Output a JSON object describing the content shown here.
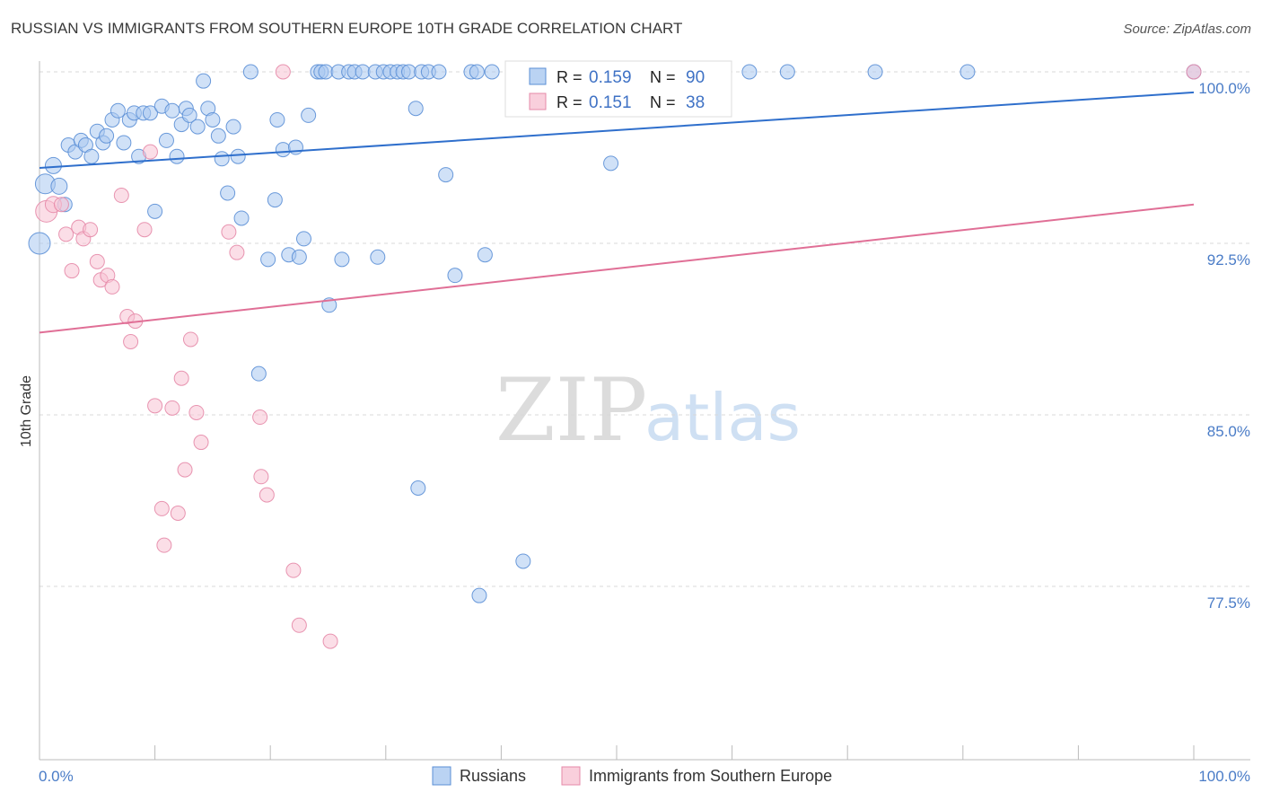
{
  "header": {
    "title": "RUSSIAN VS IMMIGRANTS FROM SOUTHERN EUROPE 10TH GRADE CORRELATION CHART",
    "source": "Source: ZipAtlas.com"
  },
  "watermark": {
    "zip": "ZIP",
    "atlas": "atlas"
  },
  "colors": {
    "russians_fill": "#a9c8f0",
    "russians_stroke": "#5b8fd6",
    "russians_line": "#2f6fcc",
    "immigrants_fill": "#f7c3d3",
    "immigrants_stroke": "#e58aa8",
    "immigrants_line": "#e06f96",
    "grid": "#d9d9d9",
    "tick_text": "#4a7cc7"
  },
  "stats_box": {
    "rows": [
      {
        "r_label": "R =",
        "r_value": "0.159",
        "n_label": "N =",
        "n_value": "90",
        "color": "#a9c8f0",
        "stroke": "#5b8fd6"
      },
      {
        "r_label": "R =",
        "r_value": "0.151",
        "n_label": "N =",
        "n_value": "38",
        "color": "#f7c3d3",
        "stroke": "#e58aa8"
      }
    ]
  },
  "legend": {
    "items": [
      {
        "label": "Russians",
        "color": "#a9c8f0",
        "stroke": "#5b8fd6"
      },
      {
        "label": "Immigrants from Southern Europe",
        "color": "#f7c3d3",
        "stroke": "#e58aa8"
      }
    ]
  },
  "chart_data": {
    "type": "scatter",
    "title": "RUSSIAN VS IMMIGRANTS FROM SOUTHERN EUROPE 10TH GRADE CORRELATION CHART",
    "xlabel": "",
    "ylabel": "10th Grade",
    "xlim": [
      0,
      100
    ],
    "ylim": [
      70,
      100.8
    ],
    "x_tick_labels": {
      "left": "0.0%",
      "right": "100.0%"
    },
    "y_ticks": [
      {
        "value": 100.0,
        "label": "100.0%"
      },
      {
        "value": 92.5,
        "label": "92.5%"
      },
      {
        "value": 85.0,
        "label": "85.0%"
      },
      {
        "value": 77.5,
        "label": "77.5%"
      }
    ],
    "grid": true,
    "legend_position": "bottom-center",
    "series": [
      {
        "name": "Russians",
        "trend": {
          "x0": 0,
          "y0": 95.8,
          "x1": 100,
          "y1": 99.1
        },
        "points": [
          [
            0,
            92.5,
            12
          ],
          [
            0.5,
            95.1,
            11
          ],
          [
            1.2,
            95.9,
            9
          ],
          [
            1.7,
            95.0,
            9
          ],
          [
            2.2,
            94.2,
            8
          ],
          [
            2.5,
            96.8,
            8
          ],
          [
            3.1,
            96.5,
            8
          ],
          [
            3.6,
            97.0,
            8
          ],
          [
            4.0,
            96.8,
            8
          ],
          [
            4.5,
            96.3,
            8
          ],
          [
            5.0,
            97.4,
            8
          ],
          [
            5.5,
            96.9,
            8
          ],
          [
            5.8,
            97.2,
            8
          ],
          [
            6.3,
            97.9,
            8
          ],
          [
            6.8,
            98.3,
            8
          ],
          [
            7.3,
            96.9,
            8
          ],
          [
            7.8,
            97.9,
            8
          ],
          [
            8.2,
            98.2,
            8
          ],
          [
            8.6,
            96.3,
            8
          ],
          [
            9.0,
            98.2,
            8
          ],
          [
            9.6,
            98.2,
            8
          ],
          [
            10.0,
            93.9,
            8
          ],
          [
            10.6,
            98.5,
            8
          ],
          [
            11.0,
            97.0,
            8
          ],
          [
            11.5,
            98.3,
            8
          ],
          [
            11.9,
            96.3,
            8
          ],
          [
            12.3,
            97.7,
            8
          ],
          [
            12.7,
            98.4,
            8
          ],
          [
            13.0,
            98.1,
            8
          ],
          [
            13.7,
            97.6,
            8
          ],
          [
            14.2,
            99.6,
            8
          ],
          [
            14.6,
            98.4,
            8
          ],
          [
            15.0,
            97.9,
            8
          ],
          [
            15.5,
            97.2,
            8
          ],
          [
            15.8,
            96.2,
            8
          ],
          [
            16.3,
            94.7,
            8
          ],
          [
            16.8,
            97.6,
            8
          ],
          [
            17.2,
            96.3,
            8
          ],
          [
            17.5,
            93.6,
            8
          ],
          [
            18.3,
            100,
            8
          ],
          [
            19.0,
            86.8,
            8
          ],
          [
            19.8,
            91.8,
            8
          ],
          [
            20.4,
            94.4,
            8
          ],
          [
            20.6,
            97.9,
            8
          ],
          [
            21.1,
            96.6,
            8
          ],
          [
            21.6,
            92.0,
            8
          ],
          [
            22.2,
            96.7,
            8
          ],
          [
            22.5,
            91.9,
            8
          ],
          [
            22.9,
            92.7,
            8
          ],
          [
            23.3,
            98.1,
            8
          ],
          [
            24.1,
            100,
            8
          ],
          [
            24.4,
            100,
            8
          ],
          [
            24.8,
            100,
            8
          ],
          [
            25.1,
            89.8,
            8
          ],
          [
            25.9,
            100,
            8
          ],
          [
            26.2,
            91.8,
            8
          ],
          [
            26.8,
            100,
            8
          ],
          [
            27.3,
            100,
            8
          ],
          [
            28.0,
            100,
            8
          ],
          [
            29.1,
            100,
            8
          ],
          [
            29.3,
            91.9,
            8
          ],
          [
            29.8,
            100,
            8
          ],
          [
            30.4,
            100,
            8
          ],
          [
            31.0,
            100,
            8
          ],
          [
            31.5,
            100,
            8
          ],
          [
            32.0,
            100,
            8
          ],
          [
            32.6,
            98.4,
            8
          ],
          [
            32.8,
            81.8,
            8
          ],
          [
            33.1,
            100,
            8
          ],
          [
            33.7,
            100,
            8
          ],
          [
            34.6,
            100,
            8
          ],
          [
            35.2,
            95.5,
            8
          ],
          [
            36.0,
            91.1,
            8
          ],
          [
            37.4,
            100,
            8
          ],
          [
            37.9,
            100,
            8
          ],
          [
            38.1,
            77.1,
            8
          ],
          [
            38.6,
            92.0,
            8
          ],
          [
            39.2,
            100,
            8
          ],
          [
            41.3,
            100,
            8
          ],
          [
            41.9,
            78.6,
            8
          ],
          [
            45.5,
            100,
            8
          ],
          [
            49.5,
            96.0,
            8
          ],
          [
            50.0,
            100,
            8
          ],
          [
            55.4,
            100,
            8
          ],
          [
            57.8,
            100,
            8
          ],
          [
            61.5,
            100,
            8
          ],
          [
            64.8,
            100,
            8
          ],
          [
            72.4,
            100,
            8
          ],
          [
            80.4,
            100,
            8
          ],
          [
            100,
            100,
            8
          ]
        ]
      },
      {
        "name": "Immigrants from Southern Europe",
        "trend": {
          "x0": 0,
          "y0": 88.6,
          "x1": 100,
          "y1": 94.2
        },
        "points": [
          [
            0.6,
            93.9,
            12
          ],
          [
            1.2,
            94.2,
            9
          ],
          [
            1.9,
            94.2,
            8
          ],
          [
            2.3,
            92.9,
            8
          ],
          [
            2.8,
            91.3,
            8
          ],
          [
            3.4,
            93.2,
            8
          ],
          [
            3.8,
            92.7,
            8
          ],
          [
            4.4,
            93.1,
            8
          ],
          [
            5.0,
            91.7,
            8
          ],
          [
            5.3,
            90.9,
            8
          ],
          [
            5.9,
            91.1,
            8
          ],
          [
            6.3,
            90.6,
            8
          ],
          [
            7.1,
            94.6,
            8
          ],
          [
            7.6,
            89.3,
            8
          ],
          [
            7.9,
            88.2,
            8
          ],
          [
            8.3,
            89.1,
            8
          ],
          [
            9.1,
            93.1,
            8
          ],
          [
            9.6,
            96.5,
            8
          ],
          [
            10.0,
            85.4,
            8
          ],
          [
            10.6,
            80.9,
            8
          ],
          [
            10.8,
            79.3,
            8
          ],
          [
            11.5,
            85.3,
            8
          ],
          [
            12.0,
            80.7,
            8
          ],
          [
            12.3,
            86.6,
            8
          ],
          [
            12.6,
            82.6,
            8
          ],
          [
            13.1,
            88.3,
            8
          ],
          [
            13.6,
            85.1,
            8
          ],
          [
            14.0,
            83.8,
            8
          ],
          [
            16.4,
            93.0,
            8
          ],
          [
            17.1,
            92.1,
            8
          ],
          [
            19.1,
            84.9,
            8
          ],
          [
            19.2,
            82.3,
            8
          ],
          [
            19.7,
            81.5,
            8
          ],
          [
            21.1,
            100,
            8
          ],
          [
            22.0,
            78.2,
            8
          ],
          [
            22.5,
            75.8,
            8
          ],
          [
            25.2,
            75.1,
            8
          ],
          [
            100,
            100,
            8
          ]
        ]
      }
    ]
  }
}
